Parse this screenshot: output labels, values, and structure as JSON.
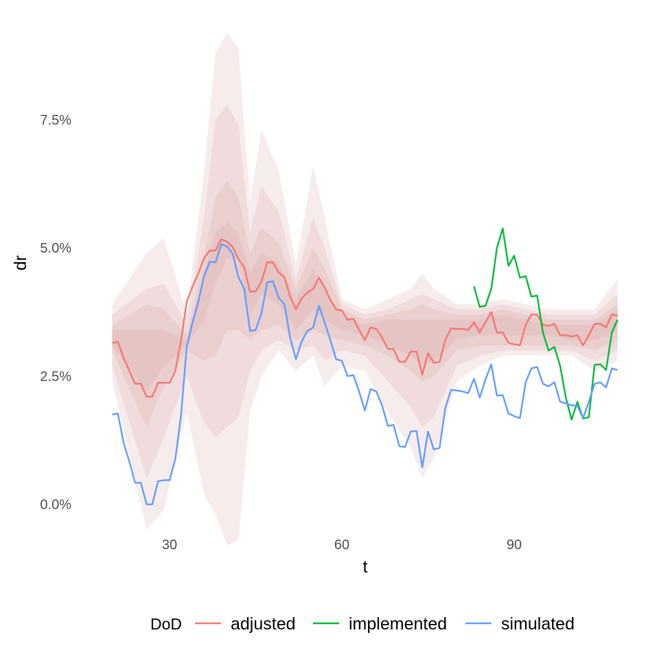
{
  "chart_data": {
    "type": "line",
    "xlabel": "t",
    "ylabel": "dr",
    "xlim": [
      19,
      109
    ],
    "ylim": [
      -0.5,
      9.3
    ],
    "x_ticks": [
      30,
      60,
      90
    ],
    "y_ticks": [
      0.0,
      2.5,
      5.0,
      7.5
    ],
    "y_tick_labels": [
      "0.0%",
      "2.5%",
      "5.0%",
      "7.5%"
    ],
    "legend": {
      "title": "DoD",
      "position": "bottom"
    },
    "band_color": "#cd8c8c",
    "fan_bands": {
      "x": [
        20,
        26,
        29,
        33,
        36,
        38,
        40,
        42,
        44,
        46,
        49,
        52,
        55,
        57,
        60,
        64,
        68,
        72,
        74,
        76,
        80,
        84,
        88,
        92,
        96,
        100,
        104,
        108
      ],
      "outer_lo": [
        2.4,
        -0.5,
        -0.1,
        1.8,
        0.2,
        -0.2,
        -0.8,
        -0.7,
        1.8,
        2.5,
        3.0,
        2.6,
        2.9,
        2.3,
        2.7,
        2.6,
        1.8,
        1.1,
        0.5,
        0.9,
        2.4,
        2.7,
        2.9,
        2.9,
        2.9,
        2.9,
        2.6,
        2.8
      ],
      "outer_hi": [
        3.9,
        4.9,
        5.2,
        3.7,
        6.5,
        8.8,
        9.2,
        8.9,
        5.9,
        7.3,
        6.5,
        4.7,
        6.6,
        5.6,
        4.0,
        3.8,
        4.0,
        4.2,
        4.5,
        4.2,
        3.9,
        3.9,
        4.0,
        3.9,
        3.8,
        3.8,
        3.8,
        4.4
      ],
      "mid_lo": [
        2.7,
        0.5,
        1.3,
        2.5,
        1.6,
        1.3,
        1.5,
        1.7,
        2.6,
        3.0,
        3.2,
        3.0,
        3.1,
        2.8,
        3.0,
        2.9,
        2.4,
        1.9,
        1.5,
        1.7,
        2.7,
        2.9,
        3.0,
        3.0,
        3.0,
        3.0,
        2.8,
        3.0
      ],
      "mid_hi": [
        3.7,
        4.2,
        4.3,
        3.5,
        5.6,
        7.5,
        7.8,
        7.4,
        5.3,
        6.2,
        5.7,
        4.4,
        5.6,
        5.0,
        3.9,
        3.7,
        3.8,
        4.0,
        4.1,
        4.0,
        3.8,
        3.8,
        3.9,
        3.8,
        3.7,
        3.7,
        3.7,
        4.1
      ],
      "inner_lo": [
        3.0,
        1.5,
        2.3,
        3.0,
        2.8,
        2.9,
        3.4,
        3.4,
        3.2,
        3.4,
        3.5,
        3.2,
        3.4,
        3.3,
        3.2,
        3.1,
        2.9,
        2.6,
        2.4,
        2.5,
        3.0,
        3.1,
        3.1,
        3.1,
        3.1,
        3.1,
        3.0,
        3.2
      ],
      "inner_hi": [
        3.5,
        3.9,
        3.8,
        3.3,
        4.8,
        6.0,
        6.3,
        6.0,
        4.9,
        5.4,
        5.1,
        4.2,
        5.0,
        4.6,
        3.8,
        3.6,
        3.7,
        3.8,
        3.9,
        3.8,
        3.7,
        3.7,
        3.8,
        3.7,
        3.6,
        3.6,
        3.6,
        3.9
      ],
      "core_lo": [
        3.1,
        2.2,
        2.7,
        3.1,
        3.6,
        4.3,
        4.8,
        4.8,
        3.7,
        4.1,
        3.9,
        3.4,
        3.8,
        3.6,
        3.4,
        3.3,
        3.1,
        2.9,
        2.7,
        2.8,
        3.2,
        3.3,
        3.3,
        3.3,
        3.3,
        3.2,
        3.2,
        3.4
      ],
      "core_hi": [
        3.4,
        3.4,
        3.4,
        3.2,
        4.5,
        5.3,
        5.5,
        5.3,
        4.5,
        4.9,
        4.7,
        4.0,
        4.6,
        4.2,
        3.7,
        3.5,
        3.6,
        3.6,
        3.6,
        3.6,
        3.6,
        3.6,
        3.7,
        3.6,
        3.5,
        3.5,
        3.5,
        3.8
      ]
    },
    "series": [
      {
        "name": "adjusted",
        "color": "#f8766d",
        "x": [
          20,
          21,
          22,
          23,
          24,
          25,
          26,
          27,
          28,
          29,
          30,
          31,
          32,
          33,
          34,
          35,
          36,
          37,
          38,
          39,
          40,
          41,
          42,
          43,
          44,
          45,
          46,
          47,
          48,
          49,
          50,
          51,
          52,
          53,
          54,
          55,
          56,
          57,
          58,
          59,
          60,
          61,
          62,
          63,
          64,
          65,
          66,
          67,
          68,
          69,
          70,
          71,
          72,
          73,
          74,
          75,
          76,
          77,
          78,
          79,
          80,
          81,
          82,
          83,
          84,
          85,
          86,
          87,
          88,
          89,
          90,
          91,
          92,
          93,
          94,
          95,
          96,
          97,
          98,
          99,
          100,
          101,
          102,
          103,
          104,
          105,
          106,
          107,
          108
        ],
        "values": [
          3.15,
          3.17,
          2.85,
          2.6,
          2.35,
          2.35,
          2.1,
          2.1,
          2.37,
          2.37,
          2.37,
          2.6,
          3.2,
          3.95,
          4.25,
          4.5,
          4.8,
          4.95,
          4.95,
          5.17,
          5.12,
          5.02,
          4.78,
          4.62,
          4.15,
          4.15,
          4.35,
          4.72,
          4.72,
          4.52,
          4.43,
          4.05,
          3.8,
          4.02,
          4.13,
          4.2,
          4.42,
          4.23,
          3.98,
          3.8,
          3.78,
          3.6,
          3.62,
          3.4,
          3.2,
          3.45,
          3.42,
          3.25,
          3.03,
          3.03,
          2.78,
          2.78,
          2.98,
          2.98,
          2.53,
          2.95,
          2.76,
          2.78,
          3.2,
          3.43,
          3.42,
          3.42,
          3.4,
          3.55,
          3.35,
          3.55,
          3.75,
          3.35,
          3.35,
          3.15,
          3.12,
          3.1,
          3.5,
          3.7,
          3.7,
          3.5,
          3.48,
          3.52,
          3.3,
          3.3,
          3.27,
          3.3,
          3.1,
          3.3,
          3.52,
          3.52,
          3.45,
          3.7,
          3.68
        ]
      },
      {
        "name": "implemented",
        "color": "#00ba38",
        "x": [
          83,
          84,
          85,
          86,
          87,
          88,
          89,
          90,
          91,
          92,
          93,
          94,
          95,
          96,
          97,
          98,
          99,
          100,
          101,
          102,
          103,
          104,
          105,
          106,
          107,
          108
        ],
        "values": [
          4.25,
          3.85,
          3.87,
          4.2,
          5.0,
          5.38,
          4.65,
          4.85,
          4.42,
          4.45,
          4.05,
          4.07,
          3.35,
          3.0,
          3.07,
          2.7,
          2.08,
          1.65,
          2.0,
          1.67,
          1.7,
          2.72,
          2.73,
          2.62,
          3.35,
          3.6
        ]
      },
      {
        "name": "simulated",
        "color": "#619cff",
        "x": [
          20,
          21,
          22,
          23,
          24,
          25,
          26,
          27,
          28,
          29,
          30,
          31,
          32,
          33,
          34,
          35,
          36,
          37,
          38,
          39,
          40,
          41,
          42,
          43,
          44,
          45,
          46,
          47,
          48,
          49,
          50,
          51,
          52,
          53,
          54,
          55,
          56,
          57,
          58,
          59,
          60,
          61,
          62,
          63,
          64,
          65,
          66,
          67,
          68,
          69,
          70,
          71,
          72,
          73,
          74,
          75,
          76,
          77,
          78,
          79,
          80,
          81,
          82,
          83,
          84,
          85,
          86,
          87,
          88,
          89,
          90,
          91,
          92,
          93,
          94,
          95,
          96,
          97,
          98,
          99,
          100,
          101,
          102,
          103,
          104,
          105,
          106,
          107,
          108
        ],
        "values": [
          1.75,
          1.77,
          1.2,
          0.83,
          0.42,
          0.42,
          0.0,
          0.0,
          0.45,
          0.47,
          0.47,
          0.88,
          1.75,
          3.08,
          3.55,
          3.95,
          4.45,
          4.73,
          4.72,
          5.07,
          5.03,
          4.88,
          4.43,
          4.2,
          3.38,
          3.4,
          3.73,
          4.33,
          4.35,
          4.03,
          3.9,
          3.25,
          2.83,
          3.18,
          3.38,
          3.45,
          3.87,
          3.55,
          3.2,
          2.83,
          2.8,
          2.5,
          2.52,
          2.2,
          1.83,
          2.25,
          2.2,
          1.93,
          1.53,
          1.55,
          1.13,
          1.12,
          1.42,
          1.43,
          0.72,
          1.42,
          1.07,
          1.1,
          1.87,
          2.23,
          2.22,
          2.2,
          2.17,
          2.45,
          2.08,
          2.43,
          2.73,
          2.12,
          2.13,
          1.77,
          1.72,
          1.68,
          2.38,
          2.65,
          2.68,
          2.35,
          2.3,
          2.38,
          2.0,
          1.97,
          1.93,
          1.92,
          1.68,
          2.0,
          2.35,
          2.38,
          2.28,
          2.65,
          2.62
        ]
      }
    ]
  }
}
